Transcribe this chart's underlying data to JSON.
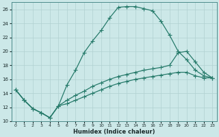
{
  "xlabel": "Humidex (Indice chaleur)",
  "bg_color": "#cce8e8",
  "grid_color": "#b0d0d0",
  "line_color": "#267a6a",
  "xlim": [
    -0.5,
    23.5
  ],
  "ylim": [
    10,
    27
  ],
  "xticks": [
    0,
    1,
    2,
    3,
    4,
    5,
    6,
    7,
    8,
    9,
    10,
    11,
    12,
    13,
    14,
    15,
    16,
    17,
    18,
    19,
    20,
    21,
    22,
    23
  ],
  "yticks": [
    10,
    12,
    14,
    16,
    18,
    20,
    22,
    24,
    26
  ],
  "line1_x": [
    0,
    1,
    2,
    3,
    4,
    5,
    6,
    7,
    8,
    9,
    10,
    11,
    12,
    13,
    14,
    15,
    16,
    17,
    18,
    19,
    20,
    21,
    22,
    23
  ],
  "line1_y": [
    14.5,
    13.0,
    11.8,
    11.2,
    10.5,
    12.2,
    15.2,
    17.3,
    19.8,
    21.5,
    23.0,
    24.8,
    26.3,
    26.4,
    26.4,
    26.1,
    25.8,
    24.3,
    22.3,
    20.0,
    18.8,
    17.3,
    16.5,
    16.2
  ],
  "line2_x": [
    0,
    1,
    2,
    3,
    4,
    5,
    6,
    7,
    8,
    9,
    10,
    11,
    12,
    13,
    14,
    15,
    16,
    17,
    18,
    19,
    20,
    21,
    22,
    23
  ],
  "line2_y": [
    14.5,
    13.0,
    11.8,
    11.2,
    10.5,
    12.2,
    13.0,
    13.7,
    14.3,
    15.0,
    15.5,
    16.0,
    16.4,
    16.7,
    17.0,
    17.3,
    17.5,
    17.7,
    18.0,
    19.8,
    20.0,
    18.5,
    17.0,
    16.2
  ],
  "line3_x": [
    0,
    1,
    2,
    3,
    4,
    5,
    6,
    7,
    8,
    9,
    10,
    11,
    12,
    13,
    14,
    15,
    16,
    17,
    18,
    19,
    20,
    21,
    22,
    23
  ],
  "line3_y": [
    14.5,
    13.0,
    11.8,
    11.2,
    10.5,
    12.2,
    12.5,
    13.0,
    13.5,
    14.0,
    14.5,
    15.0,
    15.4,
    15.7,
    16.0,
    16.2,
    16.4,
    16.6,
    16.8,
    17.0,
    17.0,
    16.5,
    16.2,
    16.2
  ]
}
